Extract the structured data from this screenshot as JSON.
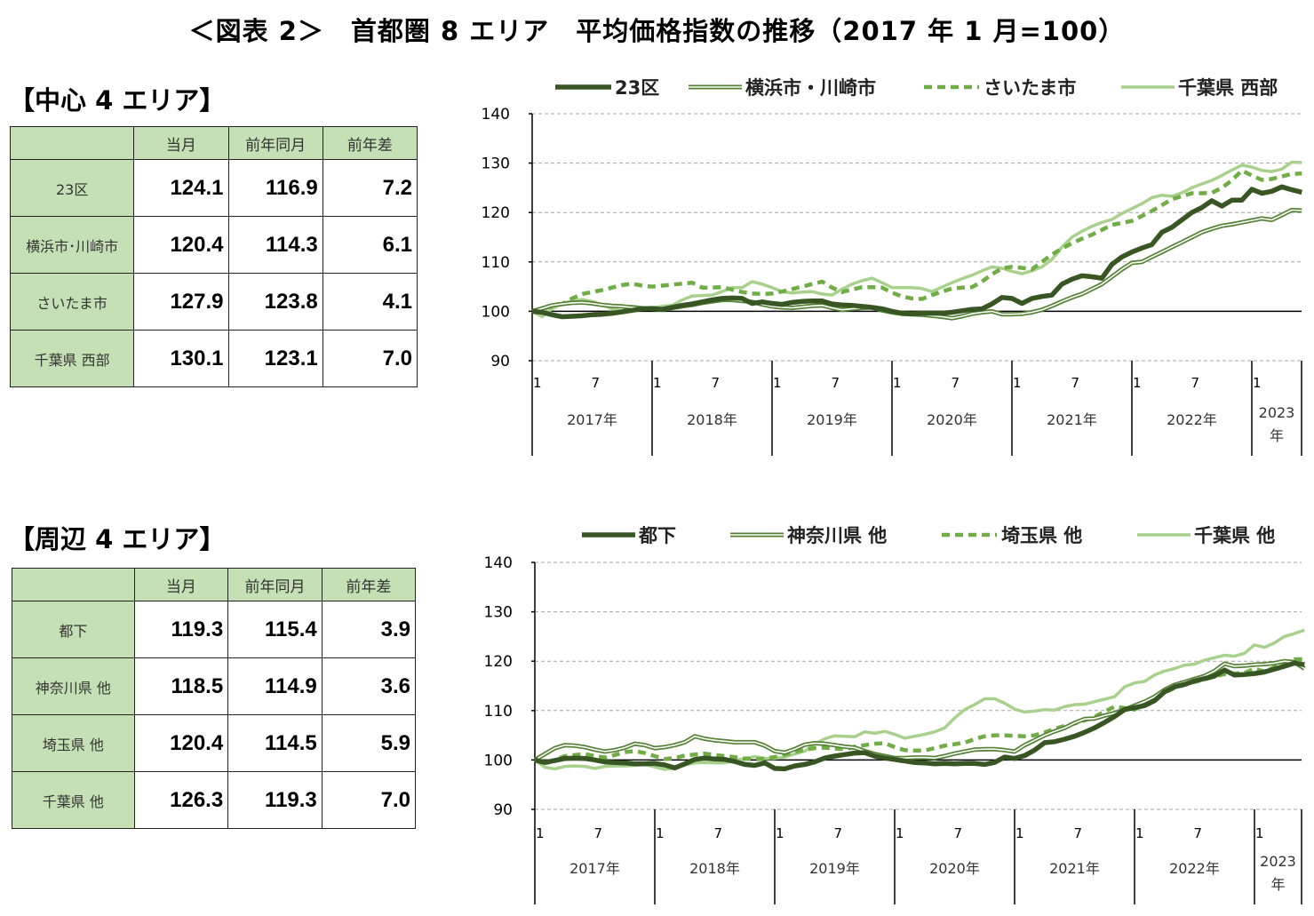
{
  "title": "＜図表 2＞　首都圏 8 エリア　平均価格指数の推移（2017 年 1 月=100）",
  "sections": [
    {
      "heading": "【中心 4 エリア】",
      "columns": [
        "",
        "当月",
        "前年同月",
        "前年差"
      ],
      "rows": [
        {
          "name": "23区",
          "current": "124.1",
          "prev_year": "116.9",
          "diff": "7.2"
        },
        {
          "name": "横浜市･川崎市",
          "current": "120.4",
          "prev_year": "114.3",
          "diff": "6.1"
        },
        {
          "name": "さいたま市",
          "current": "127.9",
          "prev_year": "123.8",
          "diff": "4.1"
        },
        {
          "name": "千葉県 西部",
          "current": "130.1",
          "prev_year": "123.1",
          "diff": "7.0"
        }
      ]
    },
    {
      "heading": "【周辺 4 エリア】",
      "columns": [
        "",
        "当月",
        "前年同月",
        "前年差"
      ],
      "rows": [
        {
          "name": "都下",
          "current": "119.3",
          "prev_year": "115.4",
          "diff": "3.9"
        },
        {
          "name": "神奈川県 他",
          "current": "118.5",
          "prev_year": "114.9",
          "diff": "3.6"
        },
        {
          "name": "埼玉県 他",
          "current": "120.4",
          "prev_year": "114.5",
          "diff": "5.9"
        },
        {
          "name": "千葉県 他",
          "current": "126.3",
          "prev_year": "119.3",
          "diff": "7.0"
        }
      ]
    }
  ],
  "chart_data": [
    {
      "type": "line",
      "x_range": [
        "2017-01",
        "2023-06"
      ],
      "x_frequency": "monthly",
      "ylim": [
        90,
        140
      ],
      "yticks": [
        90,
        100,
        110,
        120,
        130,
        140
      ],
      "grid": "horizontal dashed",
      "reference_line": 100,
      "legend": "top",
      "month_tick_labels": [
        "1",
        "7"
      ],
      "year_labels": [
        "2017年",
        "2018年",
        "2019年",
        "2020年",
        "2021年",
        "2022年",
        "2023\n年"
      ],
      "series": [
        {
          "name": "23区",
          "color": "#375623",
          "style": "thick",
          "values": [
            100.0,
            99.8,
            99.3,
            98.9,
            99.0,
            99.1,
            99.3,
            99.4,
            99.6,
            99.9,
            100.2,
            100.5,
            100.6,
            100.4,
            100.8,
            101.2,
            101.5,
            101.9,
            102.3,
            102.6,
            102.7,
            102.6,
            101.6,
            101.9,
            101.6,
            101.4,
            101.8,
            102.0,
            102.1,
            102.1,
            101.5,
            101.3,
            101.2,
            101.0,
            100.8,
            100.5,
            100.0,
            99.6,
            99.5,
            99.6,
            99.6,
            99.6,
            99.8,
            100.1,
            100.4,
            100.5,
            101.5,
            102.8,
            102.6,
            101.6,
            102.6,
            103.0,
            103.3,
            105.5,
            106.5,
            107.2,
            107.0,
            106.7,
            109.5,
            111.0,
            112.0,
            112.8,
            113.5,
            116.0,
            117.0,
            118.5,
            120.0,
            121.0,
            122.4,
            121.3,
            122.5,
            122.5,
            124.7,
            123.9,
            124.3,
            125.2,
            124.6,
            124.1
          ]
        },
        {
          "name": "横浜市・川崎市",
          "color": "#548235",
          "style": "double",
          "values": [
            100.0,
            100.6,
            101.2,
            101.5,
            101.7,
            101.8,
            101.6,
            101.3,
            101.1,
            101.0,
            100.8,
            100.6,
            100.5,
            100.3,
            100.7,
            101.0,
            101.3,
            101.7,
            102.0,
            102.3,
            102.3,
            102.1,
            101.9,
            101.4,
            101.0,
            100.8,
            100.7,
            100.9,
            101.1,
            101.2,
            100.7,
            100.3,
            100.5,
            100.7,
            100.8,
            100.2,
            99.8,
            99.5,
            99.4,
            99.3,
            99.1,
            98.9,
            98.6,
            99.0,
            99.5,
            99.8,
            100.0,
            99.4,
            99.4,
            99.5,
            99.8,
            100.3,
            101.1,
            102.0,
            102.8,
            103.5,
            104.5,
            105.5,
            107.0,
            108.5,
            109.8,
            110.0,
            111.0,
            112.0,
            113.0,
            114.0,
            115.0,
            116.0,
            116.7,
            117.3,
            117.6,
            118.0,
            118.4,
            118.8,
            118.5,
            119.5,
            120.5,
            120.4
          ]
        },
        {
          "name": "さいたま市",
          "color": "#70ad47",
          "style": "dashed",
          "values": [
            100.0,
            100.5,
            101.0,
            101.5,
            102.6,
            103.5,
            103.9,
            104.3,
            104.8,
            105.3,
            105.6,
            105.2,
            105.0,
            105.2,
            105.4,
            105.6,
            105.8,
            104.8,
            104.8,
            104.9,
            104.4,
            103.9,
            103.6,
            103.5,
            103.6,
            104.0,
            104.5,
            105.0,
            105.5,
            106.0,
            104.8,
            103.9,
            104.4,
            104.9,
            104.9,
            104.8,
            103.8,
            103.0,
            102.6,
            102.5,
            103.3,
            104.0,
            104.6,
            104.8,
            104.9,
            106.0,
            107.5,
            108.7,
            109.0,
            108.8,
            108.5,
            110.0,
            111.5,
            112.7,
            113.8,
            114.7,
            115.5,
            116.5,
            117.5,
            117.9,
            118.3,
            119.3,
            120.3,
            121.5,
            122.7,
            123.3,
            123.9,
            123.9,
            124.0,
            125.0,
            126.5,
            128.5,
            127.5,
            126.6,
            126.8,
            127.3,
            127.8,
            127.9
          ]
        },
        {
          "name": "千葉県 西部",
          "color": "#a9d18e",
          "style": "solid",
          "values": [
            100.0,
            98.9,
            100.5,
            101.6,
            102.1,
            102.4,
            102.0,
            101.3,
            100.5,
            100.1,
            101.0,
            100.8,
            100.7,
            101.0,
            101.2,
            102.3,
            103.1,
            103.2,
            103.3,
            104.0,
            104.8,
            104.8,
            106.0,
            105.5,
            104.8,
            104.0,
            103.7,
            103.9,
            104.0,
            103.5,
            103.3,
            104.5,
            105.5,
            106.2,
            106.7,
            105.8,
            104.8,
            104.8,
            104.8,
            104.6,
            104.0,
            104.9,
            105.8,
            106.6,
            107.3,
            108.2,
            109.0,
            108.7,
            108.1,
            107.6,
            108.2,
            109.0,
            110.5,
            113.0,
            115.0,
            116.2,
            117.2,
            118.0,
            118.6,
            119.8,
            120.8,
            121.8,
            123.0,
            123.5,
            123.3,
            124.0,
            125.0,
            125.8,
            126.5,
            127.5,
            128.6,
            129.6,
            129.2,
            128.5,
            128.3,
            128.8,
            130.2,
            130.1
          ]
        }
      ]
    },
    {
      "type": "line",
      "x_range": [
        "2017-01",
        "2023-06"
      ],
      "x_frequency": "monthly",
      "ylim": [
        90,
        140
      ],
      "yticks": [
        90,
        100,
        110,
        120,
        130,
        140
      ],
      "grid": "horizontal dashed",
      "reference_line": 100,
      "legend": "top",
      "month_tick_labels": [
        "1",
        "7"
      ],
      "year_labels": [
        "2017年",
        "2018年",
        "2019年",
        "2020年",
        "2021年",
        "2022年",
        "2023\n年"
      ],
      "series": [
        {
          "name": "都下",
          "color": "#375623",
          "style": "thick",
          "values": [
            100.0,
            99.5,
            99.9,
            100.3,
            100.4,
            100.3,
            100.0,
            99.6,
            99.5,
            99.4,
            99.2,
            99.2,
            99.3,
            99.0,
            98.4,
            99.2,
            100.1,
            100.4,
            100.2,
            100.1,
            99.7,
            99.1,
            98.9,
            99.4,
            98.3,
            98.2,
            98.8,
            99.1,
            99.6,
            100.4,
            100.8,
            101.1,
            101.4,
            101.5,
            100.8,
            100.4,
            100.1,
            99.8,
            99.5,
            99.4,
            99.2,
            99.3,
            99.2,
            99.3,
            99.3,
            99.1,
            99.5,
            100.6,
            100.3,
            100.9,
            102.0,
            103.5,
            103.7,
            104.2,
            104.8,
            105.6,
            106.5,
            107.6,
            108.8,
            110.2,
            110.6,
            111.0,
            112.0,
            113.8,
            114.8,
            115.3,
            116.0,
            116.5,
            117.0,
            118.2,
            117.2,
            117.3,
            117.5,
            117.8,
            118.4,
            119.0,
            119.6,
            119.3
          ]
        },
        {
          "name": "神奈川県 他",
          "color": "#548235",
          "style": "double",
          "values": [
            100.0,
            101.2,
            102.4,
            103.0,
            102.9,
            102.6,
            102.1,
            101.7,
            102.0,
            102.5,
            103.3,
            103.0,
            102.4,
            102.6,
            103.0,
            103.6,
            104.8,
            104.3,
            104.0,
            103.8,
            103.6,
            103.6,
            103.6,
            102.9,
            101.8,
            101.5,
            102.2,
            103.1,
            103.4,
            103.3,
            103.0,
            102.7,
            102.5,
            101.8,
            101.2,
            100.8,
            100.4,
            100.4,
            100.5,
            100.5,
            100.4,
            100.8,
            101.3,
            101.7,
            102.1,
            102.2,
            102.2,
            102.0,
            101.7,
            103.0,
            104.0,
            105.0,
            105.8,
            106.5,
            107.5,
            108.3,
            108.4,
            109.0,
            109.5,
            110.2,
            111.0,
            111.8,
            112.8,
            114.2,
            115.2,
            115.8,
            116.4,
            117.0,
            118.0,
            119.5,
            119.0,
            119.1,
            119.3,
            119.4,
            119.6,
            120.0,
            119.8,
            118.5
          ]
        },
        {
          "name": "埼玉県 他",
          "color": "#70ad47",
          "style": "dashed",
          "values": [
            100.0,
            99.2,
            100.0,
            100.8,
            101.0,
            101.2,
            100.8,
            100.5,
            101.0,
            101.6,
            101.8,
            101.4,
            100.8,
            100.2,
            100.4,
            100.9,
            101.1,
            101.3,
            101.0,
            100.8,
            100.6,
            100.3,
            100.1,
            100.3,
            100.6,
            101.1,
            101.6,
            102.1,
            102.4,
            102.5,
            102.3,
            102.2,
            102.7,
            103.0,
            103.3,
            103.4,
            102.6,
            102.0,
            101.9,
            101.9,
            102.4,
            102.9,
            103.2,
            103.5,
            104.2,
            104.8,
            105.0,
            105.0,
            104.9,
            104.8,
            105.0,
            105.6,
            106.3,
            106.9,
            107.4,
            108.0,
            108.7,
            109.8,
            110.8,
            110.5,
            110.2,
            111.3,
            112.4,
            113.6,
            114.6,
            115.2,
            115.8,
            116.3,
            116.9,
            117.4,
            117.5,
            117.6,
            118.5,
            117.9,
            118.8,
            119.6,
            120.4,
            120.4
          ]
        },
        {
          "name": "千葉県 他",
          "color": "#a9d18e",
          "style": "solid",
          "values": [
            100.0,
            98.5,
            98.2,
            98.7,
            98.8,
            98.7,
            98.3,
            98.7,
            98.8,
            98.8,
            98.9,
            99.1,
            98.6,
            98.1,
            98.4,
            99.0,
            99.4,
            99.5,
            99.4,
            99.4,
            99.9,
            100.3,
            100.7,
            100.3,
            100.3,
            100.6,
            101.2,
            101.8,
            103.2,
            104.3,
            104.9,
            104.8,
            104.7,
            105.7,
            105.4,
            105.8,
            105.2,
            104.4,
            104.8,
            105.2,
            105.7,
            106.5,
            108.5,
            110.2,
            111.2,
            112.4,
            112.4,
            111.5,
            110.3,
            109.7,
            109.9,
            110.2,
            110.1,
            110.8,
            111.2,
            111.3,
            111.8,
            112.3,
            112.8,
            114.8,
            115.6,
            115.9,
            117.2,
            118.0,
            118.5,
            119.2,
            119.4,
            120.2,
            120.7,
            121.2,
            121.0,
            121.6,
            123.3,
            122.8,
            123.7,
            125.0,
            125.6,
            126.3
          ]
        }
      ]
    }
  ]
}
